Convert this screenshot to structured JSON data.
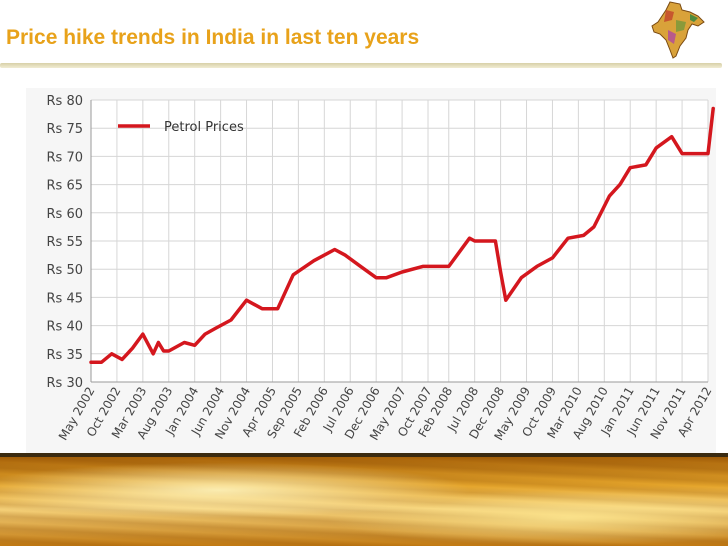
{
  "slide": {
    "title": "Price hike trends in India in last ten years"
  },
  "colors": {
    "title": "#e8a21a",
    "series_line": "#d4171e",
    "grid": "#d6d6d6",
    "plot_bg": "#f6f6f6"
  },
  "icons": {
    "corner_image": "india-map-icon",
    "footer_image": "oil-surface-image"
  },
  "chart_data": {
    "type": "line",
    "title": "",
    "xlabel": "",
    "ylabel": "",
    "ylim": [
      30,
      80
    ],
    "yticks": [
      "Rs 80",
      "Rs 75",
      "Rs 70",
      "Rs 65",
      "Rs 60",
      "Rs 55",
      "Rs 50",
      "Rs 45",
      "Rs 40",
      "Rs 35",
      "Rs 30"
    ],
    "ytick_values": [
      80,
      75,
      70,
      65,
      60,
      55,
      50,
      45,
      40,
      35,
      30
    ],
    "xticks": [
      "May 2002",
      "Oct 2002",
      "Mar 2003",
      "Aug 2003",
      "Jan 2004",
      "Jun 2004",
      "Nov 2004",
      "Apr 2005",
      "Sep 2005",
      "Feb 2006",
      "Jul 2006",
      "Dec 2006",
      "May 2007",
      "Oct 2007",
      "Feb 2008",
      "Jul 2008",
      "Dec 2008",
      "May 2009",
      "Oct 2009",
      "Mar 2010",
      "Aug 2010",
      "Jan 2011",
      "Jun 2011",
      "Nov 2011",
      "Apr 2012"
    ],
    "grid": true,
    "legend_position": "top-left",
    "series": [
      {
        "name": "Petrol Prices",
        "x": [
          "2002-05",
          "2002-07",
          "2002-09",
          "2002-11",
          "2003-01",
          "2003-03",
          "2003-05",
          "2003-06",
          "2003-07",
          "2003-08",
          "2003-11",
          "2004-01",
          "2004-03",
          "2004-05",
          "2004-08",
          "2004-11",
          "2005-02",
          "2005-05",
          "2005-08",
          "2005-12",
          "2006-04",
          "2006-06",
          "2006-09",
          "2006-12",
          "2007-01",
          "2007-02",
          "2007-05",
          "2007-09",
          "2008-02",
          "2008-06",
          "2008-07",
          "2008-11",
          "2008-12",
          "2009-01",
          "2009-04",
          "2009-07",
          "2009-10",
          "2010-01",
          "2010-04",
          "2010-06",
          "2010-09",
          "2010-11",
          "2011-01",
          "2011-04",
          "2011-06",
          "2011-09",
          "2011-11",
          "2012-01",
          "2012-04",
          "2012-05"
        ],
        "y": [
          33.5,
          33.5,
          35,
          34,
          36,
          38.5,
          35,
          37,
          35.5,
          35.5,
          37,
          36.5,
          38.5,
          39.5,
          41,
          44.5,
          43,
          43,
          49,
          51.5,
          53.5,
          52.5,
          50.5,
          48.5,
          48.5,
          48.5,
          49.5,
          50.5,
          50.5,
          55.5,
          55,
          55,
          49.5,
          44.5,
          48.5,
          50.5,
          52,
          55.5,
          56,
          57.5,
          63,
          65,
          68,
          68.5,
          71.5,
          73.5,
          70.5,
          70.5,
          70.5,
          78.5
        ]
      }
    ]
  }
}
